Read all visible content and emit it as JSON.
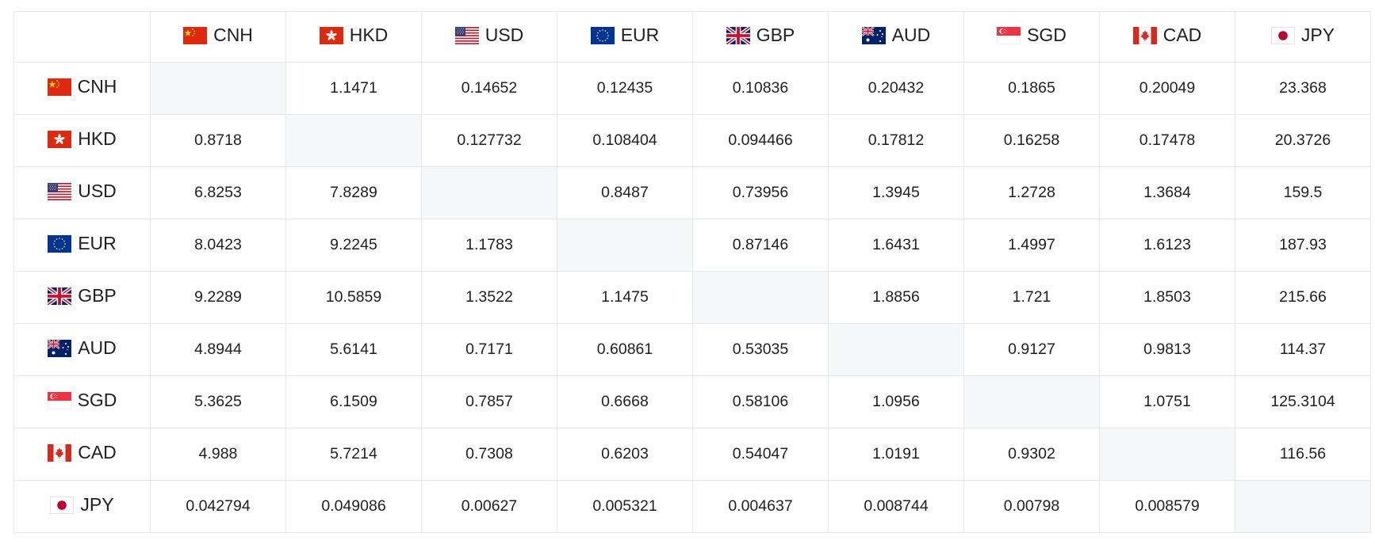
{
  "currencies": [
    {
      "code": "CNH",
      "flag": "china-flag-icon"
    },
    {
      "code": "HKD",
      "flag": "hong-kong-flag-icon"
    },
    {
      "code": "USD",
      "flag": "usa-flag-icon"
    },
    {
      "code": "EUR",
      "flag": "eu-flag-icon"
    },
    {
      "code": "GBP",
      "flag": "uk-flag-icon"
    },
    {
      "code": "AUD",
      "flag": "australia-flag-icon"
    },
    {
      "code": "SGD",
      "flag": "singapore-flag-icon"
    },
    {
      "code": "CAD",
      "flag": "canada-flag-icon"
    },
    {
      "code": "JPY",
      "flag": "japan-flag-icon"
    }
  ],
  "rows": [
    [
      "",
      "1.1471",
      "0.14652",
      "0.12435",
      "0.10836",
      "0.20432",
      "0.1865",
      "0.20049",
      "23.368"
    ],
    [
      "0.8718",
      "",
      "0.127732",
      "0.108404",
      "0.094466",
      "0.17812",
      "0.16258",
      "0.17478",
      "20.3726"
    ],
    [
      "6.8253",
      "7.8289",
      "",
      "0.8487",
      "0.73956",
      "1.3945",
      "1.2728",
      "1.3684",
      "159.5"
    ],
    [
      "8.0423",
      "9.2245",
      "1.1783",
      "",
      "0.87146",
      "1.6431",
      "1.4997",
      "1.6123",
      "187.93"
    ],
    [
      "9.2289",
      "10.5859",
      "1.3522",
      "1.1475",
      "",
      "1.8856",
      "1.721",
      "1.8503",
      "215.66"
    ],
    [
      "4.8944",
      "5.6141",
      "0.7171",
      "0.60861",
      "0.53035",
      "",
      "0.9127",
      "0.9813",
      "114.37"
    ],
    [
      "5.3625",
      "6.1509",
      "0.7857",
      "0.6668",
      "0.58106",
      "1.0956",
      "",
      "1.0751",
      "125.3104"
    ],
    [
      "4.988",
      "5.7214",
      "0.7308",
      "0.6203",
      "0.54047",
      "1.0191",
      "0.9302",
      "",
      "116.56"
    ],
    [
      "0.042794",
      "0.049086",
      "0.00627",
      "0.005321",
      "0.004637",
      "0.008744",
      "0.00798",
      "0.008579",
      ""
    ]
  ],
  "colors": {
    "border": "#e6e8eb",
    "diagonal_bg": "#f6f7f9",
    "text": "#1f1f1f"
  }
}
